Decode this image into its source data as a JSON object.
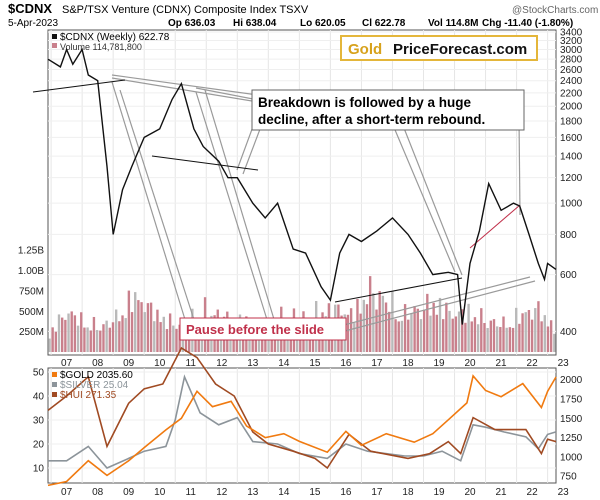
{
  "header": {
    "symbol": "$CDNX",
    "description": "S&P/TSX Venture (CDNX) Composite Index  TSXV",
    "watermark": "@StockCharts.com",
    "date": "5-Apr-2023",
    "open": "Op 636.03",
    "high": "Hi 638.04",
    "low": "Lo 620.05",
    "close": "Cl 622.78",
    "volume": "Vol 114.8M",
    "change": "Chg -11.40 (-1.80%)"
  },
  "colors": {
    "price": "#111111",
    "price_down": "#c0304a",
    "volume": "#c9808c",
    "gold": "#f07a10",
    "silver": "#8c949a",
    "hui": "#a04a22",
    "annotation_red": "#c0304a",
    "line_grey": "#9a9a9a"
  },
  "main_chart": {
    "legend_series": "$CDNX (Weekly) 622.78",
    "legend_volume": "Volume 114,781,800",
    "logo_part1": "Gold",
    "logo_part2": "PriceForecast.com",
    "callout": [
      "Breakdown is followed by a huge",
      "decline, after a short-term rebound."
    ],
    "pause_label": "Pause before the slide",
    "price_ticks": [
      "3400",
      "3200",
      "3000",
      "2800",
      "2600",
      "2400",
      "2200",
      "2000",
      "1800",
      "1600",
      "1400",
      "1200",
      "1000",
      "800",
      "600",
      "400"
    ],
    "volume_ticks": [
      "1.25B",
      "1.00B",
      "750M",
      "500M",
      "250M"
    ]
  },
  "lower_chart": {
    "legend_gold": "$GOLD 2035.60",
    "legend_silver": "$SILVER 25.04",
    "legend_hui": "$HUI 271.35",
    "left_ticks": [
      "50",
      "40",
      "30",
      "20",
      "10"
    ],
    "right_ticks": [
      "2000",
      "1750",
      "1500",
      "1250",
      "1000",
      "750"
    ]
  },
  "x_labels": [
    "07",
    "08",
    "09",
    "10",
    "11",
    "12",
    "13",
    "14",
    "15",
    "16",
    "17",
    "18",
    "19",
    "20",
    "21",
    "22",
    "23"
  ],
  "chart_data": [
    {
      "type": "line",
      "title": "$CDNX (Weekly)",
      "x": [
        2006.9,
        2007.3,
        2007.5,
        2007.7,
        2008.0,
        2008.2,
        2008.5,
        2008.8,
        2009.0,
        2009.3,
        2009.6,
        2010.0,
        2010.5,
        2010.9,
        2011.2,
        2011.6,
        2011.9,
        2012.4,
        2012.7,
        2013.0,
        2013.5,
        2013.9,
        2014.3,
        2014.8,
        2015.2,
        2015.7,
        2016.0,
        2016.3,
        2016.6,
        2017.0,
        2017.5,
        2018.0,
        2018.5,
        2018.9,
        2019.3,
        2019.8,
        2020.1,
        2020.25,
        2020.5,
        2020.8,
        2021.1,
        2021.5,
        2021.9,
        2022.1,
        2022.4,
        2022.7,
        2022.9,
        2023.0,
        2023.27
      ],
      "y": [
        2800,
        2650,
        3000,
        2700,
        3000,
        2500,
        2400,
        1300,
        800,
        1100,
        1300,
        1600,
        1700,
        2100,
        2350,
        1700,
        1500,
        1350,
        1200,
        1200,
        1000,
        900,
        1000,
        720,
        700,
        550,
        500,
        700,
        800,
        760,
        820,
        900,
        800,
        700,
        600,
        610,
        600,
        420,
        650,
        820,
        1150,
        950,
        1000,
        980,
        800,
        650,
        580,
        650,
        622.78
      ],
      "ylim": [
        350,
        3400
      ],
      "scale": "log"
    },
    {
      "type": "bar",
      "title": "Volume",
      "x_range": [
        2006.9,
        2023.27
      ],
      "values": [
        300,
        650,
        500,
        400,
        550,
        900,
        700,
        500,
        450,
        700,
        600,
        500,
        500,
        450,
        600,
        550,
        650,
        700,
        600,
        1000,
        850,
        600,
        700,
        800,
        600,
        650,
        500,
        450,
        600,
        700,
        400
      ],
      "unit": "M",
      "ylim": [
        0,
        1400
      ]
    },
    {
      "type": "line",
      "series": [
        {
          "name": "$GOLD 2035.60",
          "axis": "right",
          "x": [
            2006.9,
            2007.5,
            2008.2,
            2008.8,
            2009.5,
            2010.0,
            2010.7,
            2011.2,
            2011.7,
            2012.2,
            2012.8,
            2013.3,
            2013.9,
            2014.5,
            2015.0,
            2015.9,
            2016.5,
            2017.0,
            2017.8,
            2018.7,
            2019.3,
            2019.8,
            2020.4,
            2020.6,
            2021.0,
            2021.5,
            2022.2,
            2022.8,
            2023.0,
            2023.27
          ],
          "y": [
            630,
            680,
            950,
            760,
            950,
            1120,
            1350,
            1500,
            1850,
            1650,
            1720,
            1400,
            1250,
            1300,
            1200,
            1060,
            1330,
            1150,
            1300,
            1190,
            1300,
            1480,
            1700,
            2050,
            1860,
            1780,
            1950,
            1640,
            1850,
            2035.6
          ]
        },
        {
          "name": "$SILVER 25.04",
          "axis": "left",
          "x": [
            2006.9,
            2007.5,
            2008.2,
            2008.8,
            2009.5,
            2010.0,
            2010.7,
            2011.0,
            2011.3,
            2011.8,
            2012.4,
            2013.0,
            2013.5,
            2014.3,
            2015.0,
            2015.9,
            2016.5,
            2017.2,
            2018.4,
            2019.0,
            2019.6,
            2020.2,
            2020.6,
            2021.0,
            2021.6,
            2022.3,
            2022.7,
            2023.0,
            2023.27
          ],
          "y": [
            13,
            13,
            19,
            10,
            14,
            17,
            19,
            30,
            48,
            33,
            28,
            31,
            21,
            20,
            16,
            14,
            20,
            17,
            15,
            15,
            17,
            13,
            28,
            27,
            25,
            23,
            18,
            24,
            25.04
          ]
        },
        {
          "name": "$HUI 271.35",
          "axis": "left",
          "x": [
            2006.9,
            2007.5,
            2008.2,
            2008.8,
            2009.5,
            2010.0,
            2010.6,
            2011.2,
            2011.7,
            2012.3,
            2012.9,
            2013.5,
            2014.0,
            2014.8,
            2015.5,
            2015.9,
            2016.6,
            2017.3,
            2018.5,
            2019.2,
            2019.8,
            2020.2,
            2020.6,
            2021.3,
            2022.3,
            2022.8,
            2023.0,
            2023.27
          ],
          "y": [
            34,
            40,
            48,
            19,
            37,
            43,
            45,
            60,
            56,
            45,
            40,
            25,
            20,
            17,
            14,
            10,
            24,
            17,
            14,
            16,
            21,
            16,
            31,
            26,
            26,
            16,
            22,
            21
          ]
        }
      ],
      "y_left_range": [
        5,
        50
      ],
      "y_right_range": [
        700,
        2100
      ]
    }
  ]
}
